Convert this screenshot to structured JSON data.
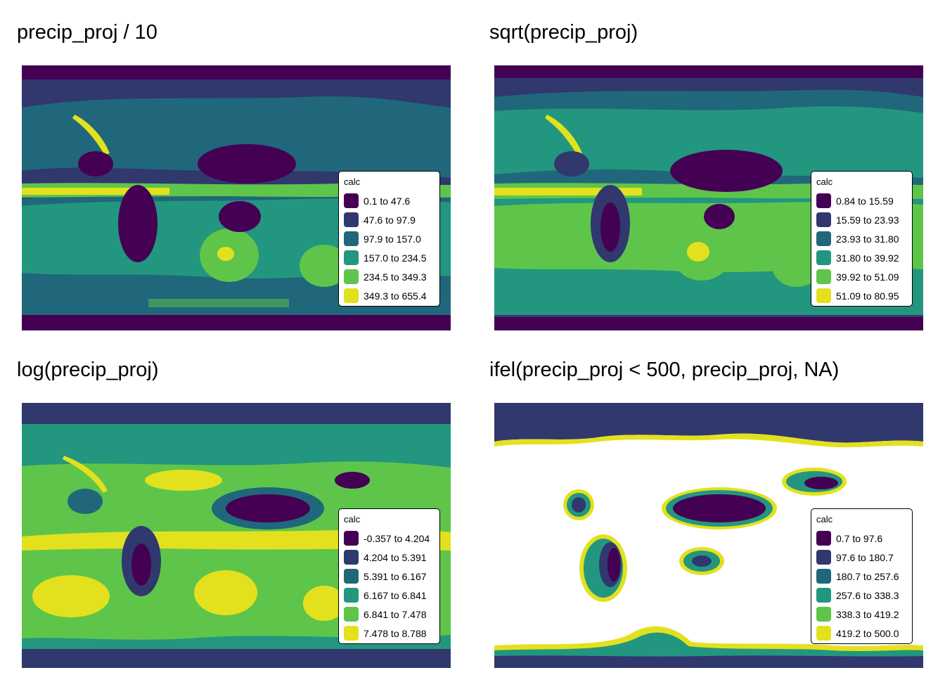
{
  "palette": [
    "#440154",
    "#30386e",
    "#20677b",
    "#23967f",
    "#5ec54a",
    "#e3e11e"
  ],
  "panels": [
    {
      "title": "precip_proj / 10",
      "legend": {
        "title": "calc",
        "items": [
          "0.1 to 47.6",
          "47.6 to 97.9",
          "97.9 to 157.0",
          "157.0 to 234.5",
          "234.5 to 349.3",
          "349.3 to 655.4"
        ]
      }
    },
    {
      "title": "sqrt(precip_proj)",
      "legend": {
        "title": "calc",
        "items": [
          "0.84 to 15.59",
          "15.59 to 23.93",
          "23.93 to 31.80",
          "31.80 to 39.92",
          "39.92 to 51.09",
          "51.09 to 80.95"
        ]
      }
    },
    {
      "title": "log(precip_proj)",
      "legend": {
        "title": "calc",
        "items": [
          "-0.357 to 4.204",
          "4.204 to 5.391",
          "5.391 to 6.167",
          "6.167 to 6.841",
          "6.841 to 7.478",
          "7.478 to 8.788"
        ]
      }
    },
    {
      "title": "ifel(precip_proj < 500, precip_proj, NA)",
      "legend": {
        "title": "calc",
        "items": [
          "0.7 to 97.6",
          "97.6 to 180.7",
          "180.7 to 257.6",
          "257.6 to 338.3",
          "338.3 to 419.2",
          "419.2 to 500.0"
        ]
      }
    }
  ]
}
